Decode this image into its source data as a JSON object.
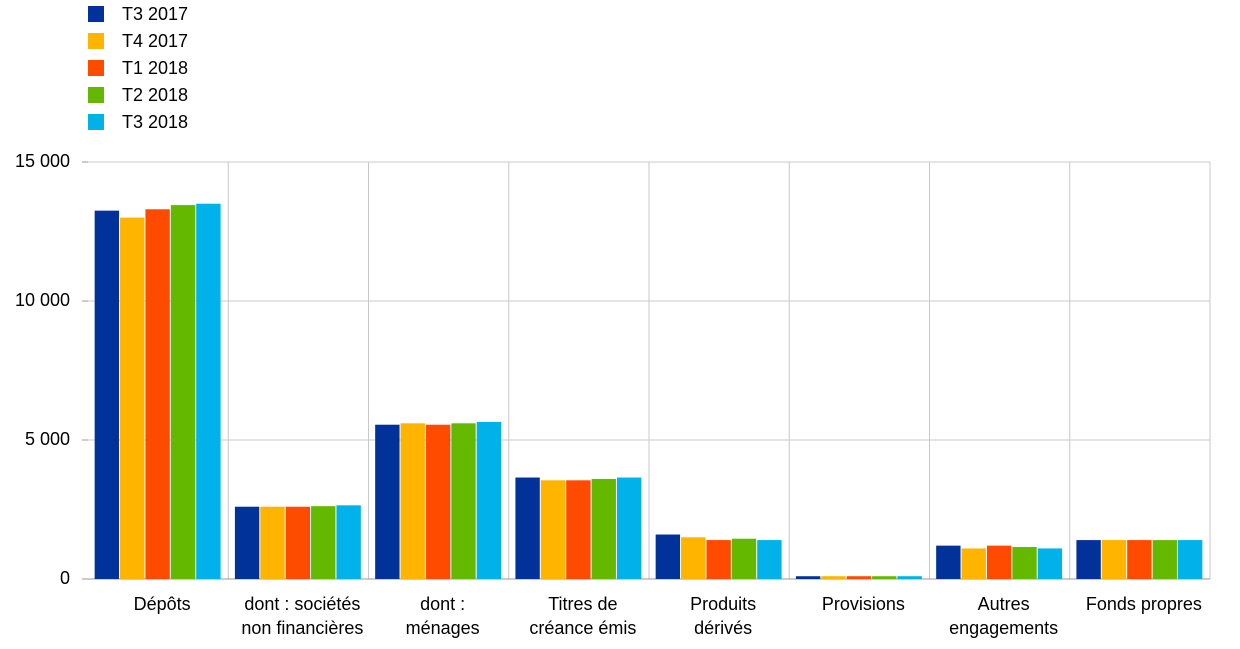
{
  "chart_data": {
    "type": "bar",
    "categories": [
      "Dépôts",
      "dont : sociétés\nnon financières",
      "dont :\nménages",
      "Titres de\ncréance émis",
      "Produits\ndérivés",
      "Provisions",
      "Autres\nengagements",
      "Fonds propres"
    ],
    "series": [
      {
        "name": "T3 2017",
        "color": "#003299",
        "values": [
          13250,
          2600,
          5550,
          3650,
          1600,
          100,
          1200,
          1400
        ]
      },
      {
        "name": "T4 2017",
        "color": "#ffb400",
        "values": [
          13000,
          2600,
          5600,
          3550,
          1500,
          100,
          1100,
          1400
        ]
      },
      {
        "name": "T1 2018",
        "color": "#ff4b00",
        "values": [
          13300,
          2600,
          5550,
          3550,
          1400,
          100,
          1200,
          1400
        ]
      },
      {
        "name": "T2 2018",
        "color": "#65b800",
        "values": [
          13450,
          2620,
          5600,
          3600,
          1450,
          100,
          1150,
          1400
        ]
      },
      {
        "name": "T3 2018",
        "color": "#00b1ea",
        "values": [
          13500,
          2650,
          5650,
          3650,
          1400,
          100,
          1100,
          1400
        ]
      }
    ],
    "ylim": [
      0,
      15000
    ],
    "yticks": [
      0,
      {
        "value": 5000,
        "label": "5 000"
      },
      {
        "value": 10000,
        "label": "10 000"
      },
      {
        "value": 15000,
        "label": "15 000"
      }
    ],
    "grid": true
  }
}
